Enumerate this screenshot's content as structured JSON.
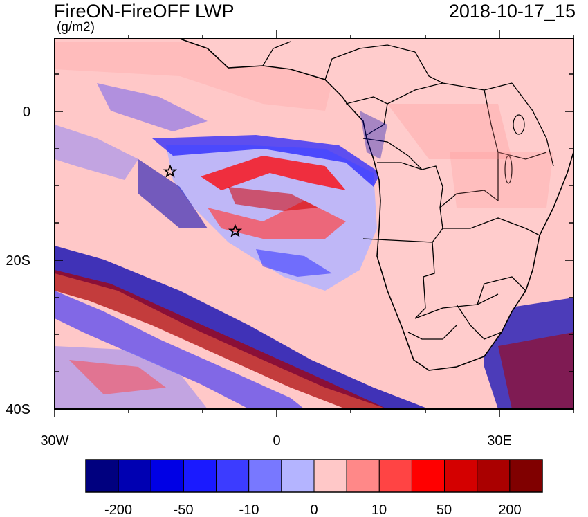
{
  "header": {
    "title": "FireON-FireOFF LWP",
    "units": "(g/m2)",
    "timestamp": "2018-10-17_15"
  },
  "axes": {
    "lat_labels": [
      "0",
      "20S",
      "40S"
    ],
    "lon_labels": [
      "30W",
      "0",
      "30E"
    ]
  },
  "colorbar": {
    "labels": [
      "-200",
      "-50",
      "-10",
      "0",
      "10",
      "50",
      "200"
    ],
    "colors": [
      "#00007f",
      "#0000b2",
      "#0000e5",
      "#1a1aff",
      "#3c3cff",
      "#7878ff",
      "#b4b4ff",
      "#ffc8c8",
      "#ff8888",
      "#ff4444",
      "#ff0000",
      "#d40000",
      "#aa0000",
      "#800000"
    ]
  },
  "markers": [
    "star",
    "star"
  ],
  "colors": {
    "background_field": "#ffc8c8",
    "land": "#ffcccc",
    "outline": "#000000"
  }
}
